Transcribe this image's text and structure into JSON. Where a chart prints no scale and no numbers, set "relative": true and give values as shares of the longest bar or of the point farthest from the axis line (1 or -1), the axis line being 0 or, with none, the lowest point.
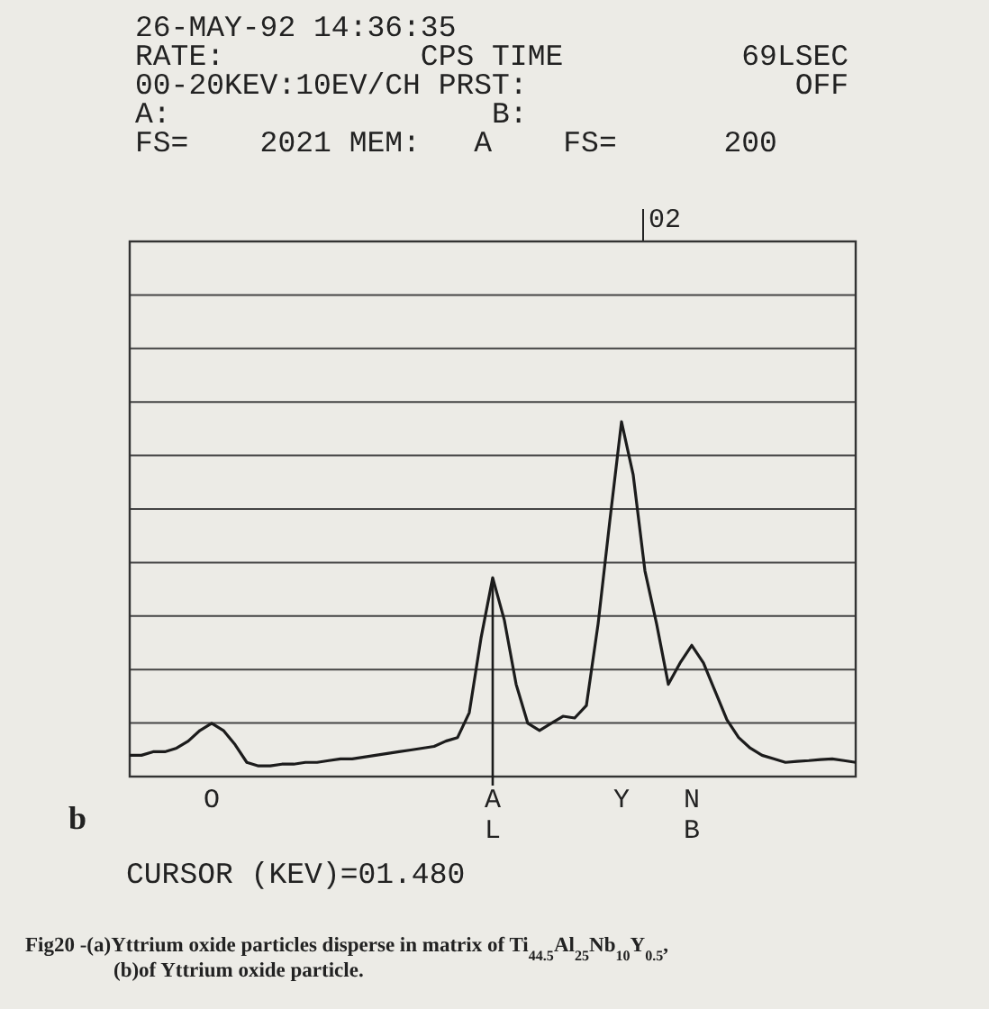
{
  "chart_data": {
    "type": "line",
    "relative": true,
    "grid": "y",
    "tick_labels": "x",
    "marker": "none",
    "line_style": "solid",
    "categories": [
      null,
      null,
      null,
      null,
      null,
      null,
      null,
      "O",
      null,
      null,
      null,
      null,
      null,
      null,
      null,
      null,
      null,
      null,
      null,
      null,
      null,
      null,
      null,
      null,
      null,
      null,
      null,
      null,
      null,
      null,
      null,
      "AL",
      null,
      null,
      null,
      null,
      null,
      null,
      null,
      null,
      null,
      null,
      "Y",
      null,
      null,
      null,
      null,
      null,
      "NB",
      null,
      null,
      null,
      null,
      null,
      null,
      null,
      null,
      null,
      null,
      null,
      null,
      null,
      null
    ],
    "series": [
      {
        "color": "#1c1c1c",
        "values": [
          0.06,
          0.06,
          0.07,
          0.07,
          0.08,
          0.1,
          0.13,
          0.15,
          0.13,
          0.09,
          0.04,
          0.03,
          0.03,
          0.035,
          0.035,
          0.04,
          0.04,
          0.045,
          0.05,
          0.05,
          0.055,
          0.06,
          0.065,
          0.07,
          0.075,
          0.08,
          0.085,
          0.1,
          0.11,
          0.18,
          0.39,
          0.56,
          0.44,
          0.26,
          0.15,
          0.13,
          0.15,
          0.17,
          0.165,
          0.2,
          0.43,
          0.72,
          1,
          0.85,
          0.58,
          0.43,
          0.26,
          0.32,
          0.37,
          0.32,
          0.24,
          0.16,
          0.11,
          0.08,
          0.06,
          0.05,
          0.04,
          0.043,
          0.045,
          0.048,
          0.05,
          0.045,
          0.04
        ]
      }
    ],
    "ref_lines": [
      {
        "axis": "x",
        "value": "AL",
        "label": "CURSOR (KEV)=01.480",
        "color": "#1c1c1c"
      }
    ],
    "annotations": [
      "26-MAY-92 14:36:35",
      "RATE:           CPS TIME          69LSEC",
      "00-20KEV:10EV/CH PRST:               OFF",
      "A:                  B:",
      "FS=    2021 MEM:   A    FS=      200",
      "b",
      "Fig20 -(a)Yttrium oxide particles disperse in matrix of Ti$_{44.5}$Al$_{25}$Nb$_{10}$Y$_{0.5}$,",
      "(b)of Yttrium oxide particle.",
      "02"
    ]
  }
}
